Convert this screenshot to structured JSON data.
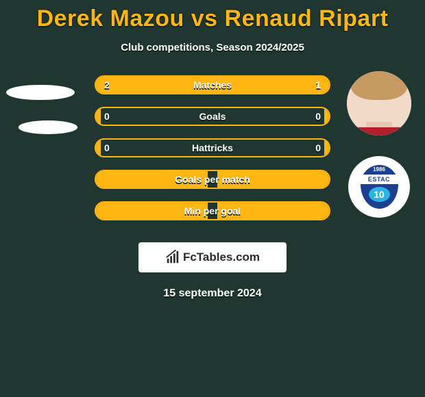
{
  "colors": {
    "background": "#203731",
    "accent": "#ffb612",
    "bar_border": "#ffb612",
    "bar_fill": "#ffb612",
    "text_on_bar": "#ffffff",
    "shadow": "#0c1f19",
    "white": "#ffffff",
    "brand_text": "#2b2b2b"
  },
  "title": "Derek Mazou vs Renaud Ripart",
  "subtitle": "Club competitions, Season 2024/2025",
  "date": "15 september 2024",
  "brand": {
    "label": "FcTables.com"
  },
  "players": {
    "left": {
      "name": "Derek Mazou",
      "club_crest_text": ""
    },
    "right": {
      "name": "Renaud Ripart",
      "club_crest_text": "ESTAC",
      "club_year": "1986",
      "club_number": "10"
    }
  },
  "stats": [
    {
      "key": "matches",
      "label": "Matches",
      "leftVal": "2",
      "rightVal": "1",
      "leftPct": 66.7,
      "rightPct": 33.3
    },
    {
      "key": "goals",
      "label": "Goals",
      "leftVal": "0",
      "rightVal": "0",
      "leftPct": 2,
      "rightPct": 2
    },
    {
      "key": "hattricks",
      "label": "Hattricks",
      "leftVal": "0",
      "rightVal": "0",
      "leftPct": 2,
      "rightPct": 2
    },
    {
      "key": "goals_per_match",
      "label": "Goals per match",
      "leftVal": "",
      "rightVal": "",
      "leftPct": 48,
      "rightPct": 48
    },
    {
      "key": "min_per_goal",
      "label": "Min per goal",
      "leftVal": "",
      "rightVal": "",
      "leftPct": 48,
      "rightPct": 48
    }
  ]
}
